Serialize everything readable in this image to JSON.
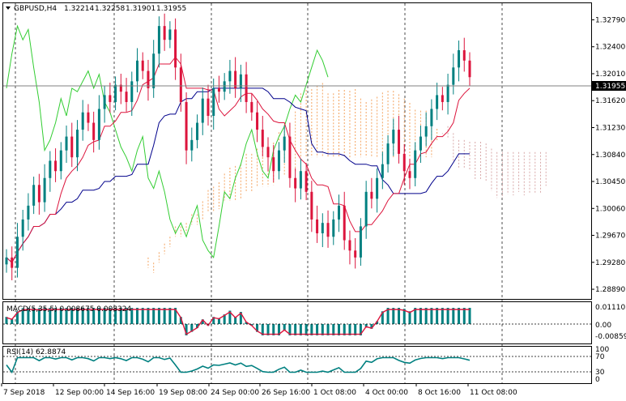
{
  "header": {
    "symbol": "GBPUSD,H4",
    "open": "1.32214",
    "high": "1.32258",
    "low": "1.31901",
    "close": "1.31955"
  },
  "price_axis": {
    "ticks": [
      "1.32790",
      "1.32400",
      "1.32010",
      "1.31620",
      "1.31230",
      "1.30840",
      "1.30450",
      "1.30060",
      "1.29670",
      "1.29280",
      "1.28890"
    ],
    "current_price": "1.31955"
  },
  "macd_panel": {
    "label": "MACD(5,35,5) 0.008675 0.008324",
    "ticks": [
      "0.011105",
      "0.00",
      "-0.008595"
    ]
  },
  "rsi_panel": {
    "label": "RSI(14) 62.8874",
    "ticks": [
      "100",
      "70",
      "30",
      "0"
    ]
  },
  "time_axis": {
    "labels": [
      "7 Sep 2018",
      "12 Sep 00:00",
      "14 Sep 16:00",
      "19 Sep 08:00",
      "24 Sep 00:00",
      "26 Sep 16:00",
      "1 Oct 08:00",
      "4 Oct 00:00",
      "8 Oct 16:00",
      "11 Oct 08:00"
    ]
  },
  "colors": {
    "bull": "#008080",
    "bear": "#dc143c",
    "tenkan": "#dc143c",
    "kijun": "#00008b",
    "chikou": "#32cd32",
    "cloud": "#f4a460",
    "cloud_bear": "#d8a8a8",
    "macd_hist": "#008080",
    "macd_signal": "#dc143c",
    "rsi_line": "#008080",
    "grid": "#000000"
  },
  "chart_data": {
    "type": "candlestick",
    "symbol": "GBPUSD",
    "timeframe": "H4",
    "ylim": [
      1.2875,
      1.3303
    ],
    "closes": [
      1.2935,
      1.292,
      1.2965,
      1.299,
      1.301,
      1.304,
      1.3015,
      1.305,
      1.3075,
      1.306,
      1.309,
      1.311,
      1.308,
      1.312,
      1.3145,
      1.313,
      1.3105,
      1.315,
      1.317,
      1.316,
      1.3185,
      1.3175,
      1.316,
      1.319,
      1.322,
      1.3205,
      1.318,
      1.323,
      1.327,
      1.325,
      1.3265,
      1.321,
      1.316,
      1.309,
      1.3105,
      1.313,
      1.3165,
      1.314,
      1.318,
      1.3175,
      1.319,
      1.3205,
      1.318,
      1.32,
      1.316,
      1.3145,
      1.312,
      1.3095,
      1.308,
      1.306,
      1.309,
      1.311,
      1.305,
      1.3035,
      1.306,
      1.303,
      1.299,
      1.297,
      1.2985,
      1.2965,
      1.299,
      1.301,
      1.296,
      1.2945,
      1.2935,
      1.298,
      1.303,
      1.302,
      1.305,
      1.307,
      1.31,
      1.312,
      1.3085,
      1.306,
      1.305,
      1.309,
      1.311,
      1.3125,
      1.315,
      1.317,
      1.316,
      1.3185,
      1.321,
      1.3235,
      1.322,
      1.3196
    ],
    "macd": {
      "ticks": [
        0.011105,
        0.0,
        -0.008595
      ]
    },
    "rsi": {
      "levels": [
        70,
        30
      ],
      "last": 62.8874
    }
  }
}
